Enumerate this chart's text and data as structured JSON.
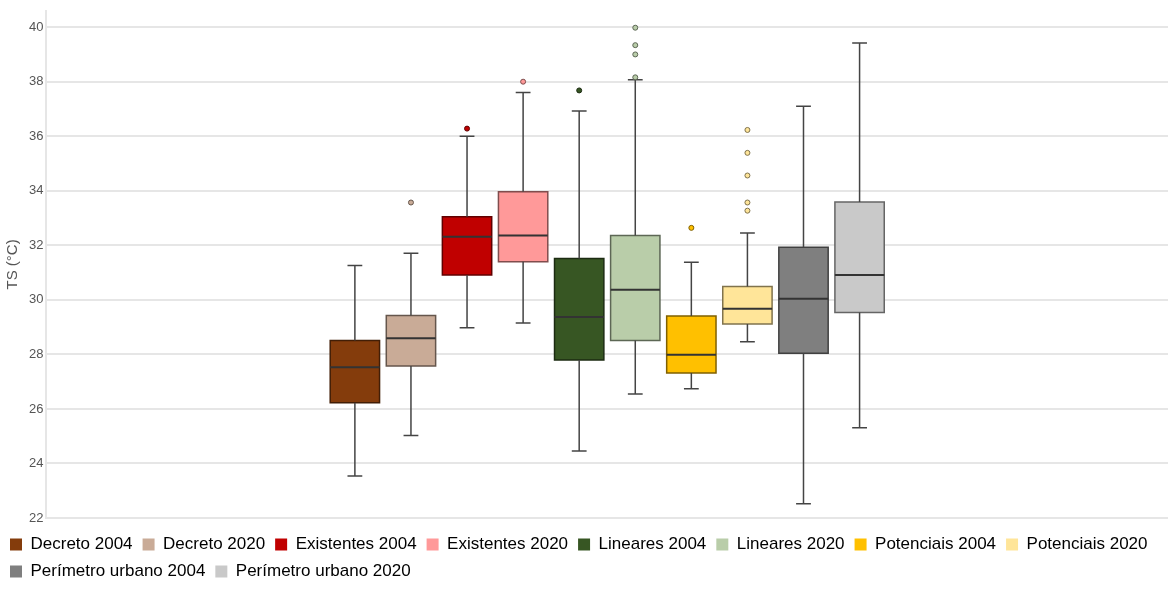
{
  "chart_data": {
    "type": "box",
    "ylabel": "TS (°C)",
    "categories": [
      null
    ],
    "ylim": [
      22,
      40.6
    ],
    "yticks": [
      22,
      24,
      26,
      28,
      30,
      32,
      34,
      36,
      38,
      40
    ],
    "grid": "y",
    "legend": "bottom",
    "tick_labels": "y",
    "series": [
      {
        "name": "Decreto 2004",
        "color": "#843c0c",
        "boxes": [
          {
            "low": 23.54,
            "q1": 26.23,
            "median": 27.53,
            "q3": 28.51,
            "high": 31.26
          }
        ]
      },
      {
        "name": "Decreto 2020",
        "color": "#c9ab97",
        "boxes": [
          {
            "low": 25.03,
            "q1": 27.57,
            "median": 28.59,
            "q3": 29.43,
            "high": 31.71,
            "outliers": [
              33.57
            ]
          }
        ]
      },
      {
        "name": "Existentes 2004",
        "color": "#c00000",
        "boxes": [
          {
            "low": 28.98,
            "q1": 30.91,
            "median": 32.31,
            "q3": 33.05,
            "high": 36.0,
            "outliers": [
              36.28
            ]
          }
        ]
      },
      {
        "name": "Existentes 2020",
        "color": "#ff9999",
        "boxes": [
          {
            "low": 29.15,
            "q1": 31.4,
            "median": 32.36,
            "q3": 33.96,
            "high": 37.6,
            "outliers": [
              38.0
            ]
          }
        ]
      },
      {
        "name": "Lineares 2004",
        "color": "#375623",
        "boxes": [
          {
            "low": 24.46,
            "q1": 27.79,
            "median": 29.37,
            "q3": 31.52,
            "high": 36.93,
            "outliers": [
              37.68
            ]
          }
        ]
      },
      {
        "name": "Lineares 2020",
        "color": "#b9cda9",
        "boxes": [
          {
            "low": 26.55,
            "q1": 28.51,
            "median": 30.37,
            "q3": 32.36,
            "high": 38.07,
            "outliers": [
              38.16,
              39.0,
              39.34,
              39.98
            ]
          }
        ]
      },
      {
        "name": "Potenciais 2004",
        "color": "#ffc000",
        "boxes": [
          {
            "low": 26.74,
            "q1": 27.32,
            "median": 27.99,
            "q3": 29.41,
            "high": 31.38,
            "outliers": [
              32.64
            ]
          }
        ]
      },
      {
        "name": "Potenciais 2020",
        "color": "#ffe599",
        "boxes": [
          {
            "low": 28.46,
            "q1": 29.11,
            "median": 29.67,
            "q3": 30.49,
            "high": 32.45,
            "outliers": [
              33.27,
              33.57,
              34.56,
              35.39,
              36.23
            ]
          }
        ]
      },
      {
        "name": "Perímetro urbano 2004",
        "color": "#7f7f7f",
        "boxes": [
          {
            "low": 22.52,
            "q1": 28.04,
            "median": 30.04,
            "q3": 31.93,
            "high": 37.1
          }
        ]
      },
      {
        "name": "Perímetro urbano 2020",
        "color": "#c9c9c9",
        "boxes": [
          {
            "low": 25.31,
            "q1": 29.54,
            "median": 30.91,
            "q3": 33.59,
            "high": 39.42
          }
        ]
      }
    ]
  }
}
